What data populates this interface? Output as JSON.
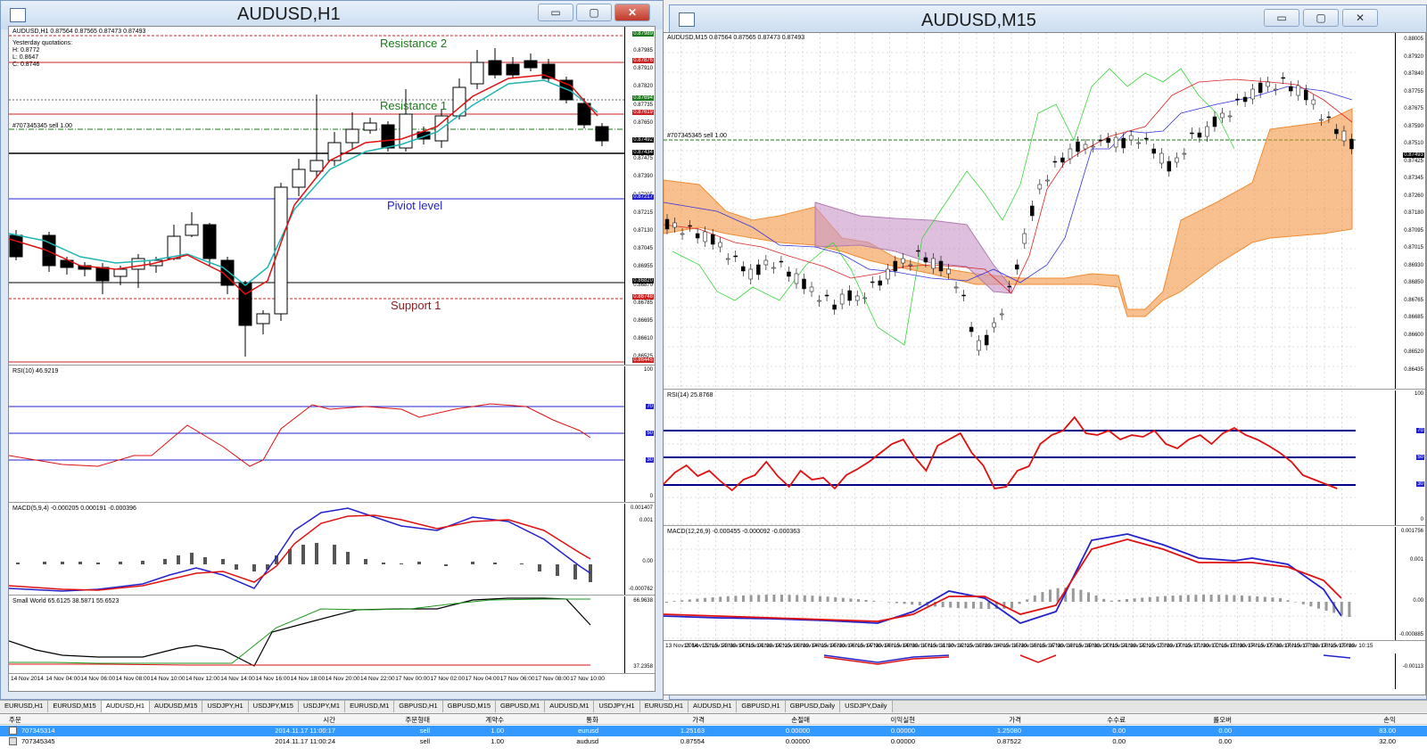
{
  "left_window": {
    "title": "AUDUSD,H1",
    "buttons": {
      "min": "▭",
      "max": "▢",
      "close": "✕"
    },
    "info": "AUDUSD,H1  0.87564 0.87565 0.87473 0.87493",
    "yesterday": [
      "Yesterday quotations:",
      "H: 0.8772",
      "L: 0.8647",
      "C: 0.8746"
    ],
    "order_line": "#707345345 sell 1.00",
    "labels": {
      "r2": "Resistance 2",
      "r1": "Resistance 1",
      "pivot": "Piviot level",
      "s1": "Support 1"
    },
    "price_axis": [
      "0.87985",
      "0.87910",
      "0.87820",
      "0.87735",
      "0.87650",
      "0.87560",
      "0.87475",
      "0.87390",
      "0.87305",
      "0.87215",
      "0.87130",
      "0.87045",
      "0.86955",
      "0.86870",
      "0.86785",
      "0.86695",
      "0.86610",
      "0.86525"
    ],
    "price_tags": [
      {
        "text": "0.87989",
        "color": "#1a7a1a"
      },
      {
        "text": "0.87876",
        "color": "#cc2222"
      },
      {
        "text": "0.87694",
        "color": "#1a7a1a"
      },
      {
        "text": "0.87619",
        "color": "#cc2222"
      },
      {
        "text": "0.87492",
        "color": "#000000"
      },
      {
        "text": "0.87434",
        "color": "#000000"
      },
      {
        "text": "0.87217",
        "color": "#2222cc"
      },
      {
        "text": "0.86820",
        "color": "#000000"
      },
      {
        "text": "0.86748",
        "color": "#cc2222"
      },
      {
        "text": "0.86445",
        "color": "#cc2222"
      }
    ],
    "rsi_label": "RSI(10) 46.9219",
    "rsi_axis": [
      "100",
      "0"
    ],
    "rsi_levels": [
      "70",
      "50",
      "30"
    ],
    "macd_label": "MACD(5,9,4) -0.000205 0.000191 -0.000396",
    "macd_axis": [
      "0.001407",
      "0.001",
      "0.00",
      "-0.000762"
    ],
    "sw_label": "Small World 65.6125 38.5871 55.6523",
    "sw_axis": [
      "66.9638",
      "37.2358"
    ],
    "time_axis": [
      "14 Nov 2014",
      "14 Nov 04:00",
      "14 Nov 06:00",
      "14 Nov 08:00",
      "14 Nov 10:00",
      "14 Nov 12:00",
      "14 Nov 14:00",
      "14 Nov 16:00",
      "14 Nov 18:00",
      "14 Nov 20:00",
      "14 Nov 22:00",
      "17 Nov 00:00",
      "17 Nov 02:00",
      "17 Nov 04:00",
      "17 Nov 06:00",
      "17 Nov 08:00",
      "17 Nov 10:00"
    ]
  },
  "right_window": {
    "title": "AUDUSD,M15",
    "buttons": {
      "min": "▭",
      "max": "▢",
      "close": "✕"
    },
    "info": "AUDUSD,M15  0.87564 0.87565 0.87473 0.87493",
    "order_line": "#707345345 sell 1.00",
    "price_axis": [
      "0.88005",
      "0.87920",
      "0.87840",
      "0.87755",
      "0.87675",
      "0.87590",
      "0.87510",
      "0.87425",
      "0.87345",
      "0.87260",
      "0.87180",
      "0.87095",
      "0.87015",
      "0.86930",
      "0.86850",
      "0.86765",
      "0.86685",
      "0.86600",
      "0.86520",
      "0.86435"
    ],
    "price_tag": "0.87493",
    "rsi_label": "RSI(14) 25.8768",
    "rsi_axis": [
      "100",
      "0"
    ],
    "rsi_levels": [
      "70",
      "50",
      "30"
    ],
    "macd_label": "MACD(12,26,9) -0.000455 -0.000092 -0.000363",
    "macd_axis": [
      "0.001756",
      "0.001",
      "0.00",
      "-0.000885"
    ],
    "extra_axis": "-0.00113",
    "time_axis": [
      "13 Nov 2014",
      "13 Nov 22:15",
      "13 Nov 23:30",
      "14 Nov 00:15",
      "14 Nov 01:30",
      "14 Nov 02:15",
      "14 Nov 03:30",
      "14 Nov 04:15",
      "14 Nov 05:30",
      "14 Nov 06:15",
      "14 Nov 07:30",
      "14 Nov 08:15",
      "14 Nov 09:30",
      "14 Nov 10:15",
      "14 Nov 11:30",
      "14 Nov 12:15",
      "14 Nov 13:30",
      "14 Nov 14:15",
      "14 Nov 15:30",
      "14 Nov 16:15",
      "14 Nov 17:30",
      "14 Nov 18:15",
      "14 Nov 19:30",
      "14 Nov 20:15",
      "14 Nov 21:30",
      "14 Nov 22:15",
      "14 Nov 23:30",
      "17 Nov 00:15",
      "17 Nov 01:30",
      "17 Nov 02:15",
      "17 Nov 03:30",
      "17 Nov 04:15",
      "17 Nov 05:30",
      "17 Nov 06:15",
      "17 Nov 07:30",
      "17 Nov 08:15",
      "17 Nov 09:30",
      "17 Nov 10:15"
    ]
  },
  "tabs": [
    "EURUSD,H1",
    "EURUSD,M15",
    "AUDUSD,H1",
    "AUDUSD,M15",
    "USDJPY,H1",
    "USDJPY,M15",
    "USDJPY,M1",
    "EURUSD,M1",
    "GBPUSD,H1",
    "GBPUSD,M15",
    "GBPUSD,M1",
    "AUDUSD,M1",
    "USDJPY,H1",
    "EURUSD,H1",
    "AUDUSD,H1",
    "GBPUSD,H1",
    "GBPUSD,Daily",
    "USDJPY,Daily"
  ],
  "active_tab": "AUDUSD,H1",
  "terminal": {
    "headers": [
      "주문",
      "시간",
      "주문형태",
      "계약수",
      "통화",
      "가격",
      "손절매",
      "이익실현",
      "가격",
      "수수료",
      "롤오버",
      "손익"
    ],
    "rows": [
      [
        "707345314",
        "2014.11.17 11:00:17",
        "sell",
        "1.00",
        "eurusd",
        "1.25163",
        "0.00000",
        "0.00000",
        "1.25080",
        "0.00",
        "0.00",
        "83.00"
      ],
      [
        "707345345",
        "2014.11.17 11:00:24",
        "sell",
        "1.00",
        "audusd",
        "0.87554",
        "0.00000",
        "0.00000",
        "0.87522",
        "0.00",
        "0.00",
        "32.00"
      ]
    ]
  }
}
